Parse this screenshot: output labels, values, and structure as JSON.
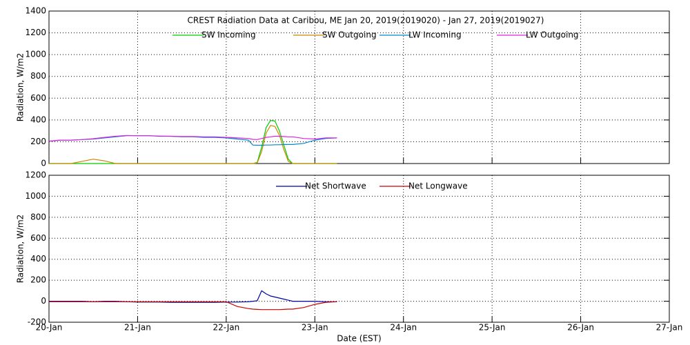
{
  "chart_data": [
    {
      "type": "line",
      "title": "CREST Radiation Data at Caribou, ME   Jan 20, 2019(2019020) - Jan 27, 2019(2019027)",
      "y_label": "Radiation, W/m2",
      "x": [
        0,
        0.125,
        0.25,
        0.375,
        0.5,
        0.625,
        0.75,
        0.875,
        1,
        1.125,
        1.25,
        1.375,
        1.5,
        1.625,
        1.75,
        1.875,
        2,
        2.125,
        2.25,
        2.3,
        2.35,
        2.4,
        2.45,
        2.5,
        2.55,
        2.6,
        2.65,
        2.7,
        2.75,
        2.875,
        3,
        3.125,
        3.25
      ],
      "xlim": [
        0,
        7
      ],
      "xticks": [
        0,
        1,
        2,
        3,
        4,
        5,
        6,
        7
      ],
      "ylim": [
        0,
        1400
      ],
      "yticks": [
        0,
        200,
        400,
        600,
        800,
        1000,
        1200,
        1400
      ],
      "grid": true,
      "series": [
        {
          "name": "SW Incoming",
          "color": "#00cc00",
          "values": [
            0,
            0,
            0,
            0,
            0,
            0,
            0,
            0,
            0,
            0,
            0,
            0,
            0,
            0,
            0,
            0,
            0,
            0,
            0,
            0,
            10,
            150,
            330,
            395,
            390,
            300,
            170,
            40,
            0,
            0,
            0,
            0,
            0
          ]
        },
        {
          "name": "SW Outgoing",
          "color": "#cc8800",
          "values": [
            0,
            0,
            0,
            20,
            40,
            25,
            0,
            0,
            0,
            0,
            0,
            0,
            0,
            0,
            0,
            0,
            0,
            0,
            0,
            0,
            5,
            110,
            280,
            350,
            340,
            260,
            130,
            20,
            0,
            0,
            0,
            0,
            0
          ]
        },
        {
          "name": "LW Incoming",
          "color": "#0088cc",
          "values": [
            205,
            215,
            215,
            220,
            225,
            235,
            245,
            255,
            255,
            255,
            250,
            250,
            245,
            245,
            240,
            240,
            235,
            225,
            215,
            170,
            168,
            168,
            170,
            170,
            172,
            172,
            175,
            175,
            175,
            185,
            215,
            230,
            235
          ]
        },
        {
          "name": "LW Outgoing",
          "color": "#e020e0",
          "values": [
            205,
            215,
            215,
            220,
            228,
            240,
            250,
            258,
            255,
            255,
            252,
            250,
            248,
            248,
            245,
            245,
            240,
            235,
            230,
            222,
            220,
            230,
            240,
            245,
            250,
            250,
            248,
            245,
            245,
            230,
            225,
            235,
            235
          ]
        }
      ]
    },
    {
      "type": "line",
      "y_label": "Radiation, W/m2",
      "x_label": "Date (EST)",
      "x": [
        0,
        0.125,
        0.25,
        0.375,
        0.5,
        0.625,
        0.75,
        0.875,
        1,
        1.125,
        1.25,
        1.375,
        1.5,
        1.625,
        1.75,
        1.875,
        2,
        2.125,
        2.25,
        2.3,
        2.35,
        2.4,
        2.45,
        2.5,
        2.55,
        2.6,
        2.65,
        2.7,
        2.75,
        2.875,
        3,
        3.125,
        3.25
      ],
      "xlim": [
        0,
        7
      ],
      "xticks": [
        {
          "value": 0,
          "label": "20-Jan"
        },
        {
          "value": 1,
          "label": "21-Jan"
        },
        {
          "value": 2,
          "label": "22-Jan"
        },
        {
          "value": 3,
          "label": "23-Jan"
        },
        {
          "value": 4,
          "label": "24-Jan"
        },
        {
          "value": 5,
          "label": "25-Jan"
        },
        {
          "value": 6,
          "label": "26-Jan"
        },
        {
          "value": 7,
          "label": "27-Jan"
        }
      ],
      "ylim": [
        -200,
        1200
      ],
      "yticks": [
        -200,
        0,
        200,
        400,
        600,
        800,
        1000,
        1200
      ],
      "grid": true,
      "series": [
        {
          "name": "Net Shortwave",
          "color": "#0000aa",
          "values": [
            0,
            0,
            0,
            0,
            -5,
            0,
            0,
            -5,
            -8,
            -8,
            -8,
            -10,
            -10,
            -10,
            -10,
            -10,
            -8,
            -8,
            -5,
            0,
            5,
            100,
            70,
            50,
            40,
            30,
            20,
            10,
            0,
            0,
            0,
            -5,
            -5
          ]
        },
        {
          "name": "Net Longwave",
          "color": "#cc0000",
          "values": [
            -5,
            -5,
            -5,
            -5,
            -5,
            -5,
            -5,
            -5,
            -5,
            -5,
            -5,
            -5,
            -5,
            -5,
            -5,
            -5,
            -5,
            -50,
            -70,
            -75,
            -78,
            -80,
            -80,
            -80,
            -80,
            -80,
            -78,
            -75,
            -75,
            -60,
            -30,
            -10,
            -5
          ]
        }
      ]
    }
  ]
}
